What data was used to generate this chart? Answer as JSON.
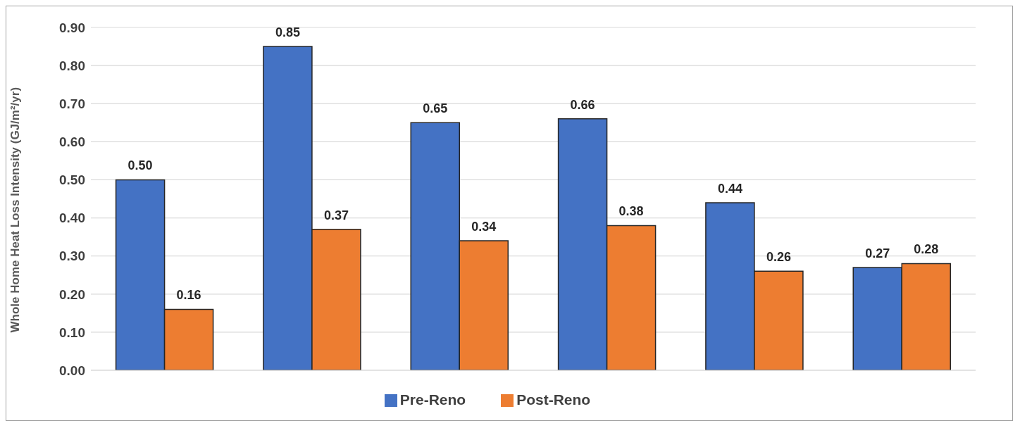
{
  "chart_data": {
    "type": "bar",
    "ylabel": "Whole Home Heat Loss Intensity (GJ/m²/yr)",
    "categories": [
      null,
      null,
      null,
      null,
      null,
      null
    ],
    "series": [
      {
        "name": "Pre-Reno",
        "color": "#4472c4",
        "values": [
          0.5,
          0.85,
          0.65,
          0.66,
          0.44,
          0.27
        ],
        "value_labels": [
          "0.50",
          "0.85",
          "0.65",
          "0.66",
          "0.44",
          "0.27"
        ]
      },
      {
        "name": "Post-Reno",
        "color": "#ed7d31",
        "values": [
          0.16,
          0.37,
          0.34,
          0.38,
          0.26,
          0.28
        ],
        "value_labels": [
          "0.16",
          "0.37",
          "0.34",
          "0.38",
          "0.26",
          "0.28"
        ]
      }
    ],
    "ylim": [
      0,
      0.9
    ],
    "yticks": [
      {
        "value": 0,
        "label": "0.00"
      },
      {
        "value": 0.1,
        "label": "0.10"
      },
      {
        "value": 0.2,
        "label": "0.20"
      },
      {
        "value": 0.3,
        "label": "0.30"
      },
      {
        "value": 0.4,
        "label": "0.40"
      },
      {
        "value": 0.5,
        "label": "0.50"
      },
      {
        "value": 0.6,
        "label": "0.60"
      },
      {
        "value": 0.7,
        "label": "0.70"
      },
      {
        "value": 0.8,
        "label": "0.80"
      },
      {
        "value": 0.9,
        "label": "0.90"
      }
    ],
    "grid": "y",
    "legend": "bottom"
  }
}
